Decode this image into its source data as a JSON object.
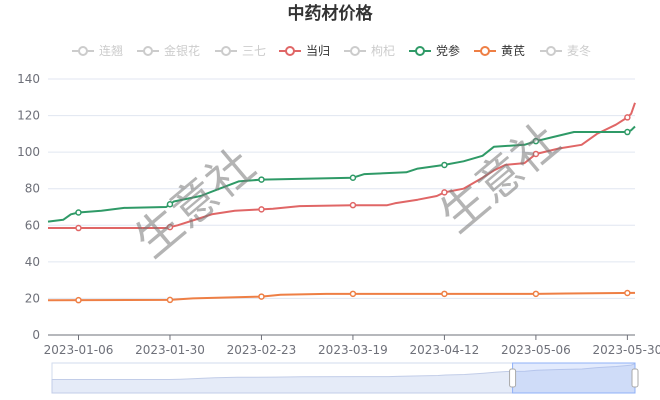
{
  "chart_data": {
    "type": "line",
    "title": "中药材价格",
    "xlabel": "",
    "ylabel": "",
    "ylim": [
      0,
      140
    ],
    "yticks": [
      0,
      20,
      40,
      60,
      80,
      100,
      120,
      140
    ],
    "xtick_labels": [
      "2023-01-06",
      "2023-01-30",
      "2023-02-23",
      "2023-03-19",
      "2023-04-12",
      "2023-05-06",
      "2023-05-30"
    ],
    "x_start": "2022-12-29",
    "x_end": "2023-06-01",
    "grid": true,
    "legend_position": "top-center",
    "watermark": "生意社",
    "legend": [
      {
        "name": "连翘",
        "visible": false
      },
      {
        "name": "金银花",
        "visible": false
      },
      {
        "name": "三七",
        "visible": false
      },
      {
        "name": "当归",
        "visible": true
      },
      {
        "name": "枸杞",
        "visible": false
      },
      {
        "name": "党参",
        "visible": true
      },
      {
        "name": "黄芪",
        "visible": true
      },
      {
        "name": "麦冬",
        "visible": false
      }
    ],
    "series": [
      {
        "name": "当归",
        "color": "#e06666",
        "points": [
          [
            "2022-12-29",
            58.5
          ],
          [
            "2023-01-29",
            58.5
          ],
          [
            "2023-02-01",
            60
          ],
          [
            "2023-02-07",
            64
          ],
          [
            "2023-02-10",
            66
          ],
          [
            "2023-02-16",
            68
          ],
          [
            "2023-02-21",
            68.5
          ],
          [
            "2023-02-26",
            69
          ],
          [
            "2023-03-05",
            70.5
          ],
          [
            "2023-03-19",
            71
          ],
          [
            "2023-03-28",
            71
          ],
          [
            "2023-03-30",
            72
          ],
          [
            "2023-04-05",
            74
          ],
          [
            "2023-04-10",
            76
          ],
          [
            "2023-04-12",
            78
          ],
          [
            "2023-04-17",
            80
          ],
          [
            "2023-04-22",
            86
          ],
          [
            "2023-04-25",
            90
          ],
          [
            "2023-04-28",
            93
          ],
          [
            "2023-05-03",
            94
          ],
          [
            "2023-05-06",
            99
          ],
          [
            "2023-05-12",
            102
          ],
          [
            "2023-05-18",
            104
          ],
          [
            "2023-05-22",
            110
          ],
          [
            "2023-05-27",
            115
          ],
          [
            "2023-05-30",
            119
          ],
          [
            "2023-05-31",
            121
          ],
          [
            "2023-06-01",
            127
          ]
        ],
        "markers": [
          "2023-01-06",
          "2023-01-30",
          "2023-02-23",
          "2023-03-19",
          "2023-04-12",
          "2023-05-06",
          "2023-05-30"
        ]
      },
      {
        "name": "党参",
        "color": "#2f9a67",
        "points": [
          [
            "2022-12-29",
            62
          ],
          [
            "2023-01-02",
            63
          ],
          [
            "2023-01-04",
            66
          ],
          [
            "2023-01-06",
            67
          ],
          [
            "2023-01-12",
            68
          ],
          [
            "2023-01-18",
            69.5
          ],
          [
            "2023-01-29",
            70
          ],
          [
            "2023-01-31",
            73
          ],
          [
            "2023-02-07",
            76
          ],
          [
            "2023-02-12",
            80
          ],
          [
            "2023-02-17",
            84
          ],
          [
            "2023-02-23",
            85
          ],
          [
            "2023-03-19",
            86
          ],
          [
            "2023-03-22",
            88
          ],
          [
            "2023-04-02",
            89
          ],
          [
            "2023-04-05",
            91
          ],
          [
            "2023-04-12",
            93
          ],
          [
            "2023-04-17",
            95
          ],
          [
            "2023-04-22",
            98
          ],
          [
            "2023-04-25",
            103
          ],
          [
            "2023-05-03",
            104
          ],
          [
            "2023-05-06",
            106
          ],
          [
            "2023-05-10",
            108
          ],
          [
            "2023-05-16",
            111
          ],
          [
            "2023-05-30",
            111
          ],
          [
            "2023-05-31",
            112
          ],
          [
            "2023-06-01",
            114
          ]
        ],
        "markers": [
          "2023-01-06",
          "2023-01-30",
          "2023-02-23",
          "2023-03-19",
          "2023-04-12",
          "2023-05-06",
          "2023-05-30"
        ]
      },
      {
        "name": "黄芪",
        "color": "#ee7f45",
        "points": [
          [
            "2022-12-29",
            19
          ],
          [
            "2023-01-30",
            19.2
          ],
          [
            "2023-02-05",
            20
          ],
          [
            "2023-02-23",
            21
          ],
          [
            "2023-02-28",
            22
          ],
          [
            "2023-03-12",
            22.5
          ],
          [
            "2023-05-06",
            22.5
          ],
          [
            "2023-05-14",
            22.7
          ],
          [
            "2023-06-01",
            23
          ]
        ],
        "markers": [
          "2023-01-06",
          "2023-01-30",
          "2023-02-23",
          "2023-03-19",
          "2023-04-12",
          "2023-05-06",
          "2023-05-30"
        ]
      }
    ],
    "datazoom": {
      "start_fraction": 0.79,
      "end_fraction": 1.0
    }
  }
}
